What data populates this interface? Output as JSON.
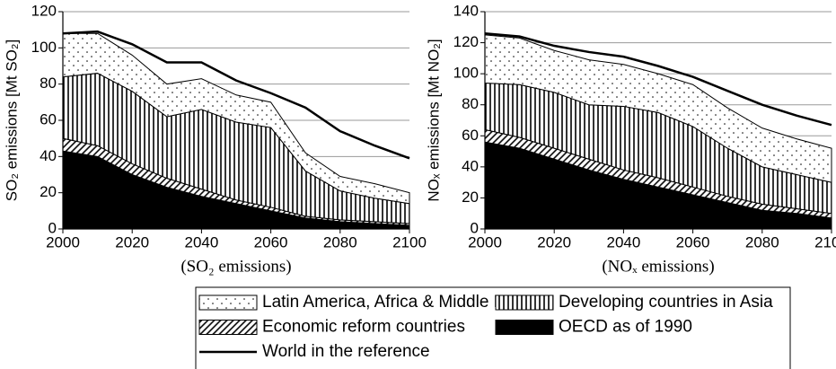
{
  "chart_data": [
    {
      "type": "area",
      "stacked": true,
      "grid": true,
      "ylabel": "SO₂ emissions [Mt SO₂]",
      "xlabel": "(SO₂ emissions)",
      "x": [
        2000,
        2010,
        2020,
        2030,
        2040,
        2050,
        2060,
        2070,
        2080,
        2090,
        2100
      ],
      "xlim": [
        2000,
        2100
      ],
      "xticks": [
        2000,
        2020,
        2040,
        2060,
        2080,
        2100
      ],
      "ylim": [
        0,
        120
      ],
      "yticks": [
        0,
        20,
        40,
        60,
        80,
        100,
        120
      ],
      "series": [
        {
          "name": "Latin America, Africa & Middle East",
          "kind": "area",
          "fill": "dots",
          "values": [
            24,
            22,
            20,
            18,
            17,
            15,
            14,
            10,
            8,
            8,
            6
          ]
        },
        {
          "name": "Developing countries in Asia",
          "kind": "area",
          "fill": "vlines",
          "values": [
            34,
            40,
            40,
            34,
            44,
            43,
            44,
            25,
            16,
            13,
            11
          ]
        },
        {
          "name": "Economic reform countries",
          "kind": "area",
          "fill": "diag",
          "values": [
            7,
            6,
            6,
            5,
            4,
            2,
            2,
            1,
            1,
            1,
            1
          ]
        },
        {
          "name": "OECD as of 1990",
          "kind": "area",
          "fill": "solid",
          "values": [
            43,
            40,
            30,
            23,
            18,
            14,
            10,
            6,
            4,
            3,
            2
          ]
        },
        {
          "name": "World in the reference",
          "kind": "line",
          "color": "#000000",
          "values": [
            108,
            109,
            102,
            92,
            92,
            82,
            75,
            67,
            54,
            46,
            39
          ]
        }
      ]
    },
    {
      "type": "area",
      "stacked": true,
      "grid": true,
      "ylabel": "NOₓ emissions [Mt NO₂]",
      "xlabel": "(NOₓ emissions)",
      "x": [
        2000,
        2010,
        2020,
        2030,
        2040,
        2050,
        2060,
        2070,
        2080,
        2090,
        2100
      ],
      "xlim": [
        2000,
        2100
      ],
      "xticks": [
        2000,
        2020,
        2040,
        2060,
        2080,
        2100
      ],
      "ylim": [
        0,
        140
      ],
      "yticks": [
        0,
        20,
        40,
        60,
        80,
        100,
        120,
        140
      ],
      "series": [
        {
          "kind": "area",
          "fill": "dots",
          "values": [
            31,
            30,
            27,
            29,
            27,
            25,
            27,
            26,
            25,
            23,
            22
          ]
        },
        {
          "kind": "area",
          "fill": "vlines",
          "values": [
            30,
            34,
            36,
            35,
            41,
            42,
            39,
            31,
            24,
            22,
            20
          ]
        },
        {
          "kind": "area",
          "fill": "diag",
          "values": [
            8,
            7,
            7,
            7,
            6,
            6,
            5,
            4,
            4,
            3,
            3
          ]
        },
        {
          "kind": "area",
          "fill": "solid",
          "values": [
            56,
            52,
            45,
            38,
            32,
            27,
            22,
            17,
            12,
            10,
            7
          ]
        },
        {
          "kind": "line",
          "color": "#000000",
          "values": [
            126,
            124,
            118,
            114,
            111,
            105,
            98,
            89,
            80,
            73,
            67
          ]
        }
      ]
    }
  ]
}
